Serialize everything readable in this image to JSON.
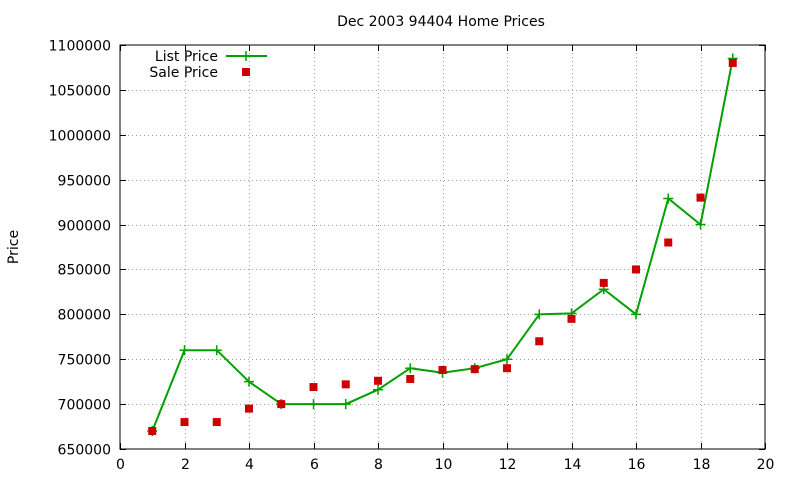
{
  "chart_data": {
    "type": "line",
    "title": "Dec 2003 94404 Home Prices",
    "xlabel": "",
    "ylabel": "Price",
    "xlim": [
      0,
      20
    ],
    "ylim": [
      650000,
      1100000
    ],
    "xticks": [
      0,
      2,
      4,
      6,
      8,
      10,
      12,
      14,
      16,
      18,
      20
    ],
    "yticks": [
      650000,
      700000,
      750000,
      800000,
      850000,
      900000,
      950000,
      1000000,
      1050000,
      1100000
    ],
    "grid": true,
    "legend_position": "top-left",
    "series": [
      {
        "name": "List Price",
        "style": "line-plus",
        "color": "#00a000",
        "x": [
          1,
          2,
          3,
          4,
          5,
          6,
          7,
          8,
          9,
          10,
          11,
          12,
          13,
          14,
          15,
          16,
          17,
          18,
          19
        ],
        "values": [
          670000,
          760000,
          760000,
          725000,
          700000,
          700000,
          700000,
          716000,
          740000,
          735000,
          740000,
          750000,
          800000,
          801000,
          828000,
          800000,
          929000,
          900000,
          1085000
        ]
      },
      {
        "name": "Sale Price",
        "style": "square",
        "color": "#cc0000",
        "x": [
          1,
          2,
          3,
          4,
          5,
          6,
          7,
          8,
          9,
          10,
          11,
          12,
          13,
          14,
          15,
          16,
          17,
          18,
          19
        ],
        "values": [
          670000,
          680000,
          680000,
          695000,
          700000,
          719000,
          722000,
          726000,
          728000,
          738000,
          739000,
          740000,
          770000,
          795000,
          835000,
          850000,
          880000,
          930000,
          1080000
        ]
      }
    ]
  }
}
